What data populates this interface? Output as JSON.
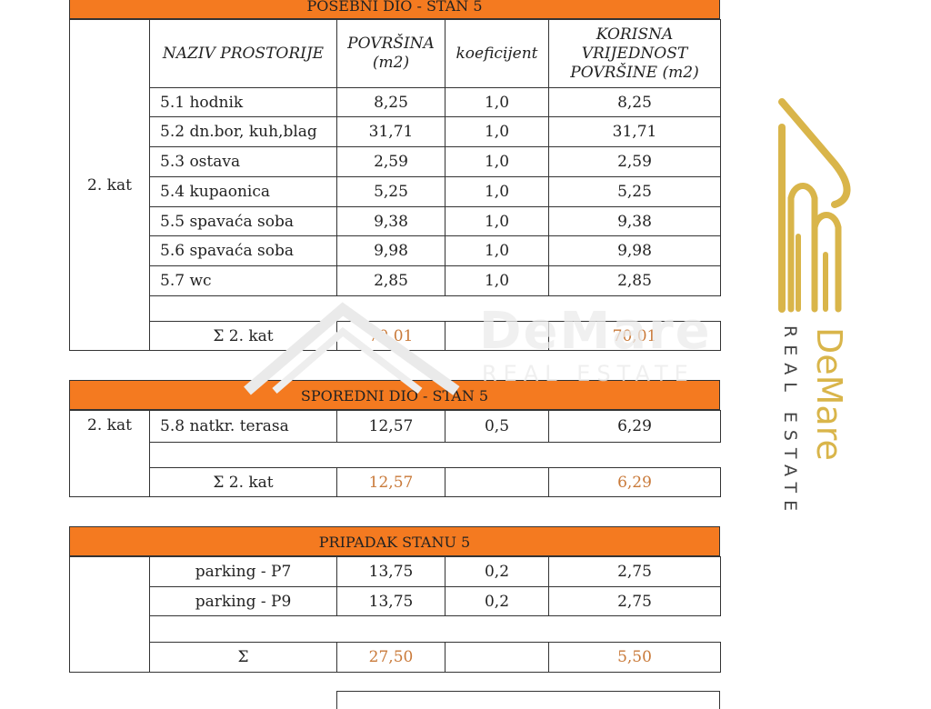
{
  "posebni": {
    "title": "POSEBNI DIO - STAN 5",
    "headers": [
      "NAZIV PROSTORIJE",
      "POVRŠINA (m2)",
      "koeficijent",
      "KORISNA VRIJEDNOST POVRŠINE (m2)"
    ],
    "floor": "2. kat",
    "rows": [
      {
        "name": "5.1 hodnik",
        "area": "8,25",
        "coef": "1,0",
        "useful": "8,25"
      },
      {
        "name": "5.2 dn.bor, kuh,blag",
        "area": "31,71",
        "coef": "1,0",
        "useful": "31,71"
      },
      {
        "name": "5.3 ostava",
        "area": "2,59",
        "coef": "1,0",
        "useful": "2,59"
      },
      {
        "name": "5.4 kupaonica",
        "area": "5,25",
        "coef": "1,0",
        "useful": "5,25"
      },
      {
        "name": "5.5 spavaća soba",
        "area": "9,38",
        "coef": "1,0",
        "useful": "9,38"
      },
      {
        "name": "5.6 spavaća soba",
        "area": "9,98",
        "coef": "1,0",
        "useful": "9,98"
      },
      {
        "name": "5.7 wc",
        "area": "2,85",
        "coef": "1,0",
        "useful": "2,85"
      }
    ],
    "sum": {
      "label": "Σ 2. kat",
      "area": "70,01",
      "useful": "70,01"
    }
  },
  "sporedni": {
    "title": "SPOREDNI DIO - STAN 5",
    "floor": "2. kat",
    "rows": [
      {
        "name": "5.8 natkr. terasa",
        "area": "12,57",
        "coef": "0,5",
        "useful": "6,29"
      }
    ],
    "sum": {
      "label": "Σ 2. kat",
      "area": "12,57",
      "useful": "6,29"
    }
  },
  "pripadak": {
    "title": "PRIPADAK STANU 5",
    "rows": [
      {
        "name": "parking - P7",
        "area": "13,75",
        "coef": "0,2",
        "useful": "2,75"
      },
      {
        "name": "parking - P9",
        "area": "13,75",
        "coef": "0,2",
        "useful": "2,75"
      }
    ],
    "sum": {
      "label": "Σ",
      "area": "27,50",
      "useful": "5,50"
    }
  },
  "watermark": {
    "brand": "DeMare",
    "tagline": "REAL ESTATE",
    "logo_icon": "house-arch-logo-icon",
    "gold": "#d9b54a",
    "grey": "#ececec"
  },
  "colors": {
    "header_orange": "#f47a20",
    "sum_text": "#c97a3a"
  }
}
